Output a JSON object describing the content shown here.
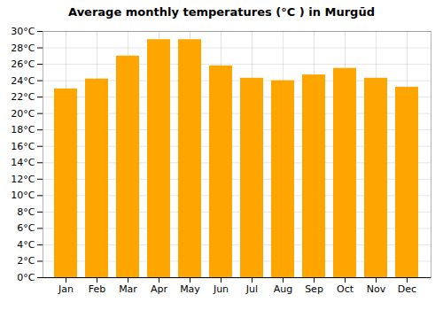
{
  "chart_data": {
    "type": "bar",
    "title": "Average monthly temperatures (°C ) in Murgūd",
    "categories": [
      "Jan",
      "Feb",
      "Mar",
      "Apr",
      "May",
      "Jun",
      "Jul",
      "Aug",
      "Sep",
      "Oct",
      "Nov",
      "Dec"
    ],
    "values": [
      23.0,
      24.2,
      27.0,
      29.0,
      29.0,
      25.8,
      24.3,
      24.0,
      24.7,
      25.5,
      24.3,
      23.2
    ],
    "color": "#FFA500",
    "ylim": [
      0,
      30
    ],
    "yticks": [
      {
        "value": 0,
        "label": "0°C"
      },
      {
        "value": 2,
        "label": "2°C"
      },
      {
        "value": 4,
        "label": "4°C"
      },
      {
        "value": 6,
        "label": "6°C"
      },
      {
        "value": 8,
        "label": "8°C"
      },
      {
        "value": 10,
        "label": "10°C"
      },
      {
        "value": 12,
        "label": "12°C"
      },
      {
        "value": 14,
        "label": "14°C"
      },
      {
        "value": 16,
        "label": "16°C"
      },
      {
        "value": 18,
        "label": "18°C"
      },
      {
        "value": 20,
        "label": "20°C"
      },
      {
        "value": 22,
        "label": "22°C"
      },
      {
        "value": 24,
        "label": "24°C"
      },
      {
        "value": 26,
        "label": "26°C"
      },
      {
        "value": 28,
        "label": "28°C"
      },
      {
        "value": 30,
        "label": "30°C"
      }
    ],
    "grid": true
  }
}
